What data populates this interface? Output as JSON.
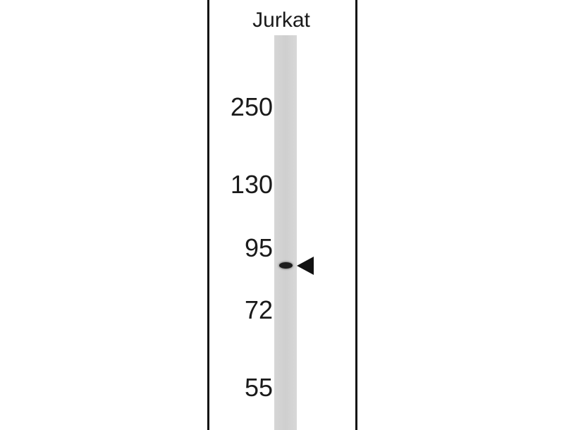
{
  "lane_label": "Jurkat",
  "markers": [
    "250",
    "130",
    "95",
    "72",
    "55"
  ],
  "band_arrow_icon": "left-pointing-triangle"
}
